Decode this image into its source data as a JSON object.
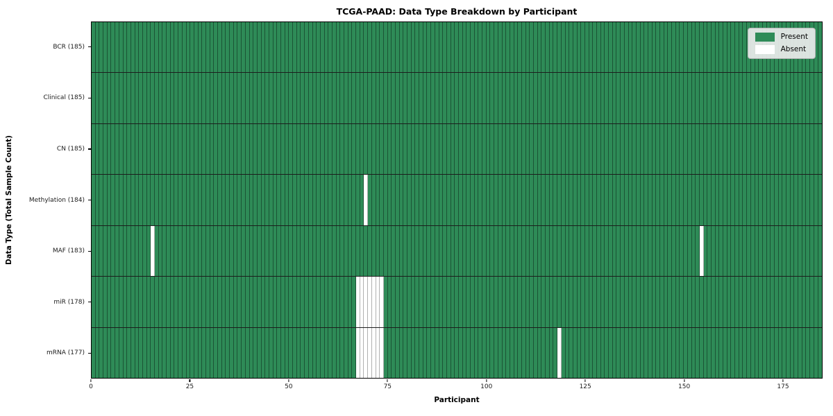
{
  "chart_data": {
    "type": "heatmap",
    "title": "TCGA-PAAD: Data Type Breakdown by Participant",
    "xlabel": "Participant",
    "ylabel": "Data Type (Total Sample Count)",
    "n_columns": 185,
    "x_ticks": [
      0,
      25,
      50,
      75,
      100,
      125,
      150,
      175
    ],
    "grid": true,
    "legend": {
      "position": "upper-right",
      "entries": [
        {
          "label": "Present",
          "color": "#2e8b57"
        },
        {
          "label": "Absent",
          "color": "#ffffff"
        }
      ]
    },
    "colors": {
      "present": "#2e8b57",
      "absent": "#ffffff",
      "cell_edge_on_present": "#1b5435",
      "cell_edge_on_absent": "#b0b0b0",
      "row_separator": "#1c1c1c",
      "spine": "#000000",
      "legend_background": "#ebebeb"
    },
    "rows": [
      {
        "data_type": "BCR",
        "total_sample_count": 185,
        "label": "BCR (185)",
        "absent_columns": []
      },
      {
        "data_type": "Clinical",
        "total_sample_count": 185,
        "label": "Clinical (185)",
        "absent_columns": []
      },
      {
        "data_type": "CN",
        "total_sample_count": 185,
        "label": "CN (185)",
        "absent_columns": []
      },
      {
        "data_type": "Methylation",
        "total_sample_count": 184,
        "label": "Methylation (184)",
        "absent_columns": [
          69
        ]
      },
      {
        "data_type": "MAF",
        "total_sample_count": 183,
        "label": "MAF (183)",
        "absent_columns": [
          15,
          154
        ]
      },
      {
        "data_type": "miR",
        "total_sample_count": 178,
        "label": "miR (178)",
        "absent_columns": [
          67,
          68,
          69,
          70,
          71,
          72,
          73
        ]
      },
      {
        "data_type": "mRNA",
        "total_sample_count": 177,
        "label": "mRNA (177)",
        "absent_columns": [
          67,
          68,
          69,
          70,
          71,
          72,
          73,
          118
        ]
      }
    ]
  }
}
